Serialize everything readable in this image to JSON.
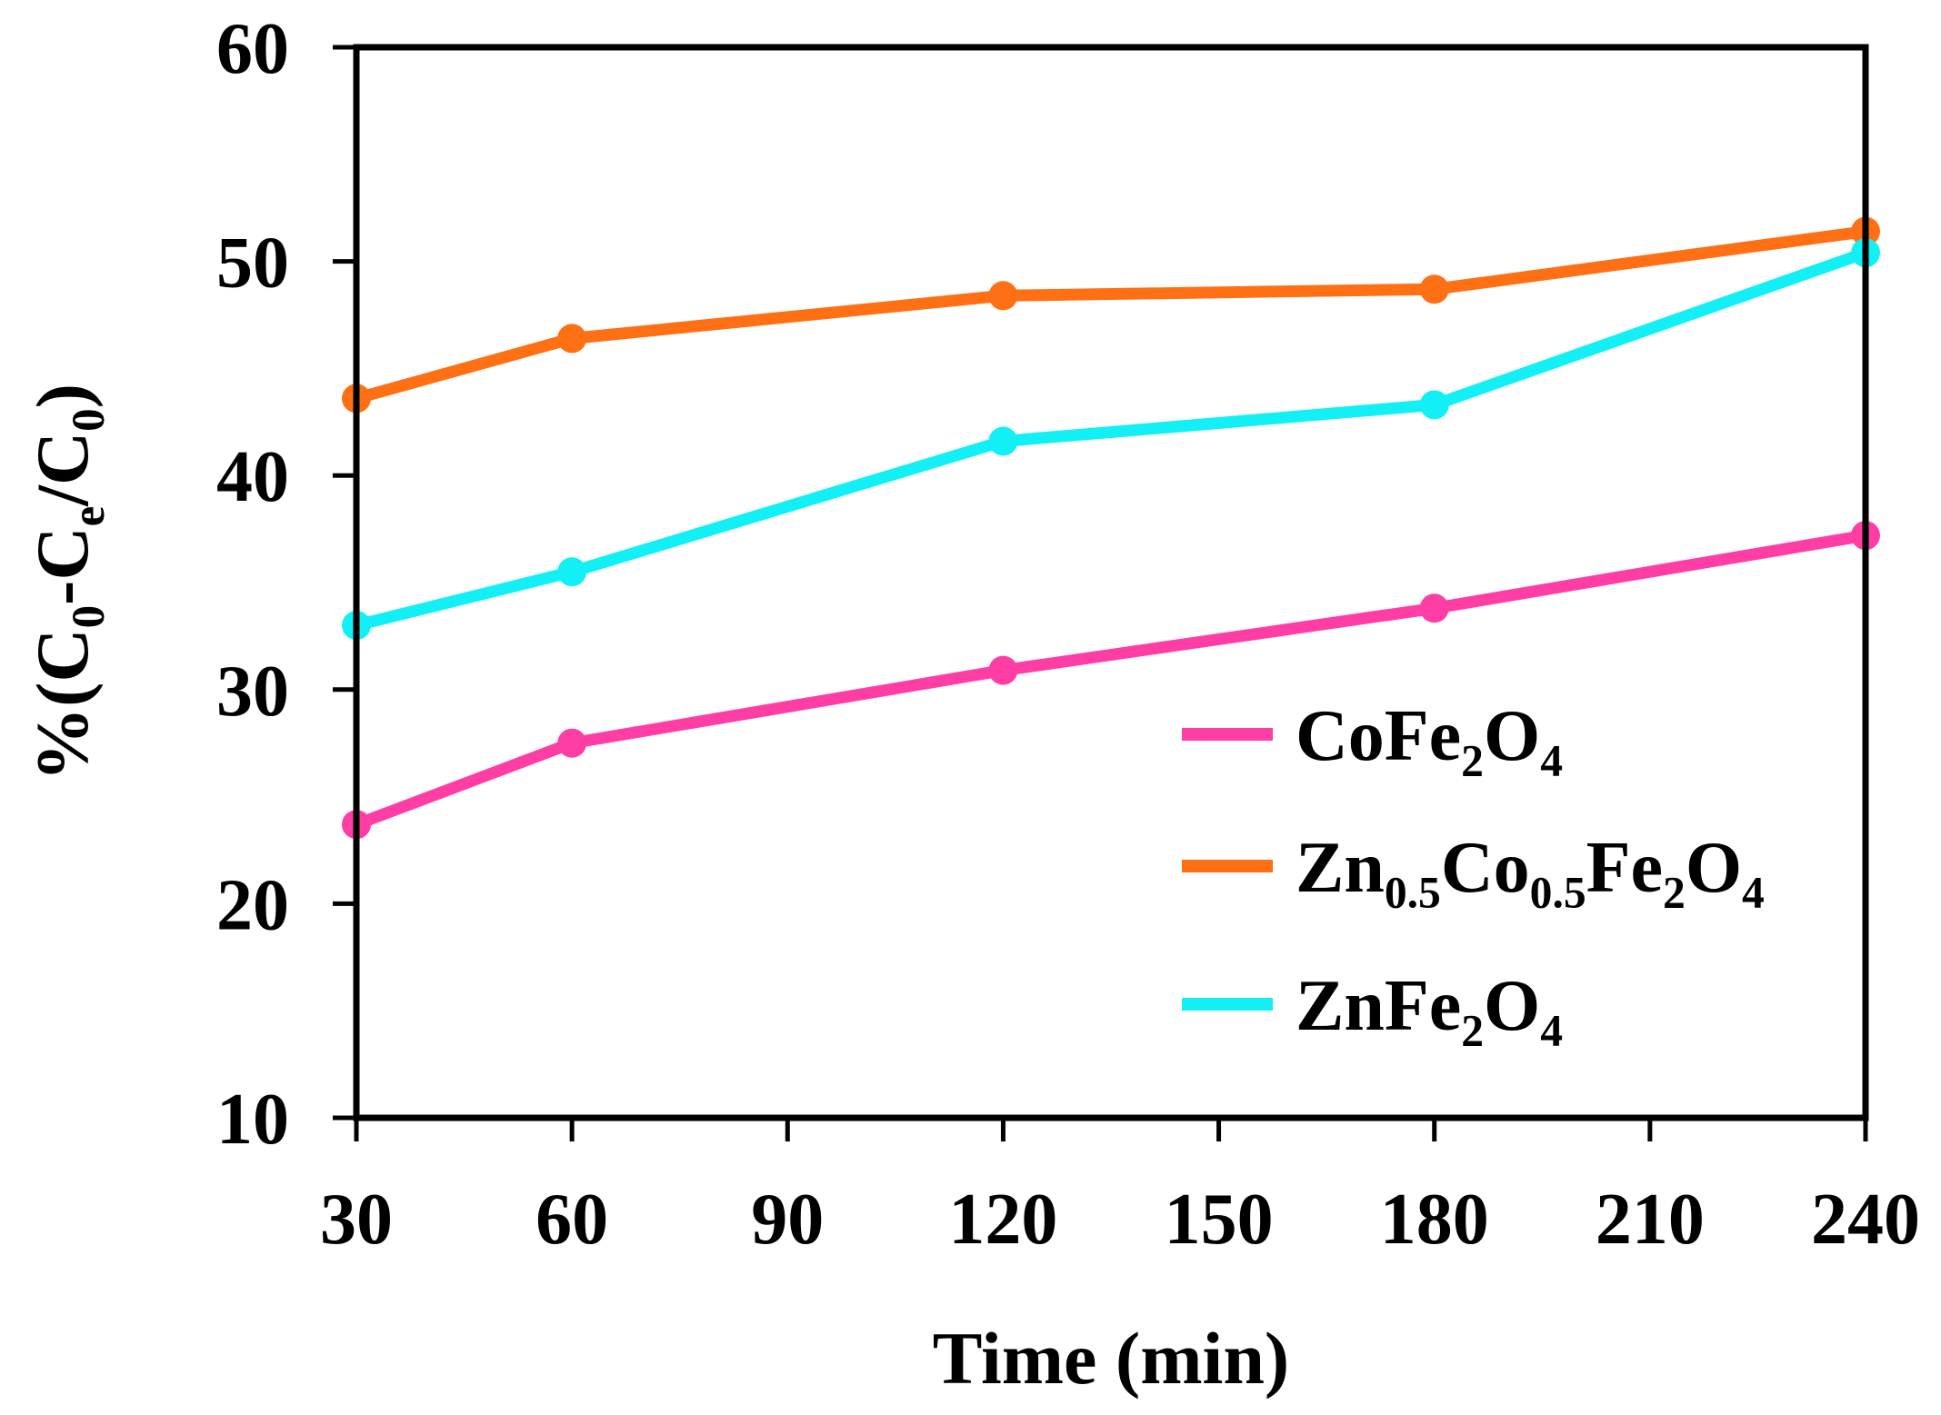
{
  "chart_data": {
    "type": "line",
    "title": "",
    "xlabel": "Time (min)",
    "ylabel": {
      "text": "%(C0-Ce/C0)",
      "parts": [
        {
          "t": "%(C",
          "sub": false
        },
        {
          "t": "0",
          "sub": true
        },
        {
          "t": "-C",
          "sub": false
        },
        {
          "t": "e",
          "sub": true
        },
        {
          "t": "/C",
          "sub": false
        },
        {
          "t": "0",
          "sub": true
        },
        {
          "t": ")",
          "sub": false
        }
      ]
    },
    "xlim": [
      30,
      240
    ],
    "ylim": [
      10,
      60
    ],
    "xticks": [
      30,
      60,
      90,
      120,
      150,
      180,
      210,
      240
    ],
    "yticks": [
      10,
      20,
      30,
      40,
      50,
      60
    ],
    "grid": false,
    "legend_position": "right",
    "series": [
      {
        "name": "CoFe2O4",
        "label_parts": [
          {
            "t": "CoFe",
            "sub": false
          },
          {
            "t": "2",
            "sub": true
          },
          {
            "t": "O",
            "sub": false
          },
          {
            "t": "4",
            "sub": true
          }
        ],
        "color": "#ff3ea5",
        "x": [
          30,
          60,
          120,
          180,
          240
        ],
        "y": [
          23.7,
          27.5,
          30.9,
          33.8,
          37.2
        ]
      },
      {
        "name": "Zn0.5Co0.5Fe2O4",
        "label_parts": [
          {
            "t": "Zn",
            "sub": false
          },
          {
            "t": "0.5",
            "sub": true
          },
          {
            "t": "Co",
            "sub": false
          },
          {
            "t": "0.5",
            "sub": true
          },
          {
            "t": "Fe",
            "sub": false
          },
          {
            "t": "2",
            "sub": true
          },
          {
            "t": "O",
            "sub": false
          },
          {
            "t": "4",
            "sub": true
          }
        ],
        "color": "#ff6f14",
        "x": [
          30,
          60,
          120,
          180,
          240
        ],
        "y": [
          43.6,
          46.4,
          48.4,
          48.7,
          51.4
        ]
      },
      {
        "name": "ZnFe2O4",
        "label_parts": [
          {
            "t": "ZnFe",
            "sub": false
          },
          {
            "t": "2",
            "sub": true
          },
          {
            "t": "O",
            "sub": false
          },
          {
            "t": "4",
            "sub": true
          }
        ],
        "color": "#12f0f5",
        "x": [
          30,
          60,
          120,
          180,
          240
        ],
        "y": [
          33.0,
          35.5,
          41.6,
          43.3,
          50.4
        ]
      }
    ]
  }
}
